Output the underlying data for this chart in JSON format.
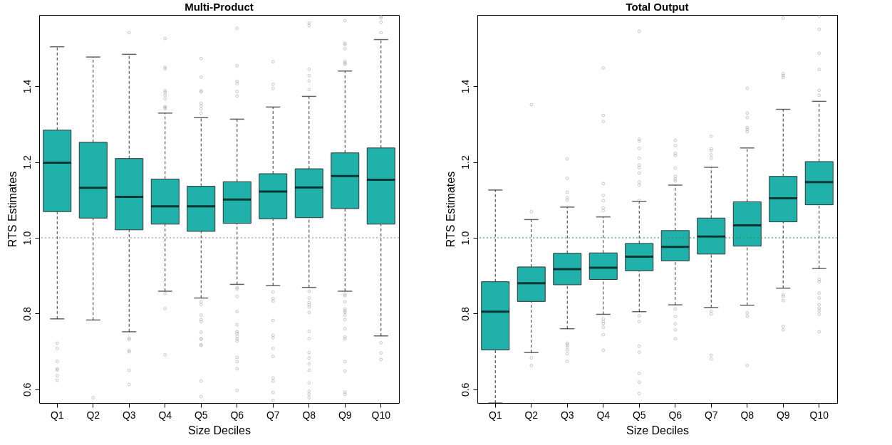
{
  "chart_data": [
    {
      "type": "box",
      "title": "Multi-Product",
      "xlabel": "Size Deciles",
      "ylabel": "RTS Estimates",
      "color": "#20b2aa",
      "ylim": [
        0.564,
        1.588
      ],
      "yticks": [
        0.6,
        0.8,
        {
          "value": 1.0,
          "label": "1.0"
        },
        1.2,
        1.4
      ],
      "categories": [
        "Q1",
        "Q2",
        "Q3",
        "Q4",
        "Q5",
        "Q6",
        "Q7",
        "Q8",
        "Q9",
        "Q10"
      ],
      "ref_lines": [
        {
          "axis": "y",
          "value": 1.0,
          "color": "#888888",
          "line_style": "dotted"
        }
      ],
      "boxes": [
        {
          "low": 0.786,
          "q1": 1.069,
          "median": 1.198,
          "q3": 1.284,
          "high": 1.504,
          "outliers": [
            0.722,
            0.708,
            0.674,
            0.654,
            0.651,
            0.636,
            0.624
          ]
        },
        {
          "low": 0.783,
          "q1": 1.052,
          "median": 1.132,
          "q3": 1.252,
          "high": 1.477,
          "outliers": [
            0.578
          ]
        },
        {
          "low": 0.752,
          "q1": 1.021,
          "median": 1.108,
          "q3": 1.209,
          "high": 1.484,
          "outliers": [
            1.541,
            0.735,
            0.732,
            0.702,
            0.699,
            0.65,
            0.613
          ]
        },
        {
          "low": 0.859,
          "q1": 1.036,
          "median": 1.083,
          "q3": 1.155,
          "high": 1.329,
          "outliers": [
            1.526,
            1.45,
            1.446,
            1.388,
            1.384,
            1.376,
            1.367,
            1.346,
            1.344,
            1.341,
            0.853,
            0.813,
            0.691
          ]
        },
        {
          "low": 0.841,
          "q1": 1.017,
          "median": 1.083,
          "q3": 1.136,
          "high": 1.317,
          "outliers": [
            1.473,
            1.424,
            1.388,
            1.385,
            1.355,
            1.348,
            1.34,
            1.329,
            0.831,
            0.824,
            0.796,
            0.784,
            0.779,
            0.751,
            0.734,
            0.732,
            0.718,
            0.716,
            0.622,
            0.581
          ]
        },
        {
          "low": 0.877,
          "q1": 1.038,
          "median": 1.101,
          "q3": 1.148,
          "high": 1.313,
          "outliers": [
            1.553,
            1.454,
            1.413,
            1.407,
            1.386,
            1.374,
            0.868,
            0.865,
            0.845,
            0.805,
            0.771,
            0.752,
            0.748,
            0.74,
            0.733,
            0.728,
            0.684,
            0.673,
            0.654,
            0.597
          ]
        },
        {
          "low": 0.874,
          "q1": 1.05,
          "median": 1.122,
          "q3": 1.169,
          "high": 1.345,
          "outliers": [
            1.465,
            1.405,
            1.394,
            0.857,
            0.84,
            0.833,
            0.782,
            0.743,
            0.736,
            0.708,
            0.687,
            0.63,
            0.622,
            0.592,
            0.571
          ]
        },
        {
          "low": 0.869,
          "q1": 1.053,
          "median": 1.133,
          "q3": 1.182,
          "high": 1.373,
          "outliers": [
            1.567,
            1.56,
            1.445,
            1.428,
            1.414,
            1.391,
            0.859,
            0.841,
            0.829,
            0.823,
            0.817,
            0.803,
            0.753,
            0.734,
            0.697,
            0.682,
            0.667,
            0.65,
            0.617,
            0.595,
            0.587,
            0.578
          ]
        },
        {
          "low": 0.859,
          "q1": 1.077,
          "median": 1.163,
          "q3": 1.224,
          "high": 1.44,
          "outliers": [
            1.573,
            1.513,
            1.51,
            1.499,
            1.465,
            1.461,
            1.458,
            0.851,
            0.847,
            0.831,
            0.812,
            0.807,
            0.803,
            0.796,
            0.784,
            0.76,
            0.738,
            0.733,
            0.673,
            0.648,
            0.593,
            0.587
          ]
        },
        {
          "low": 0.741,
          "q1": 1.036,
          "median": 1.153,
          "q3": 1.237,
          "high": 1.523,
          "outliers": [
            1.584,
            1.58,
            1.569,
            1.541,
            0.723,
            0.696,
            0.679
          ]
        }
      ]
    },
    {
      "type": "box",
      "title": "Total Output",
      "xlabel": "Size Deciles",
      "ylabel": "RTS Estimates",
      "color": "#20b2aa",
      "ylim": [
        0.564,
        1.588
      ],
      "yticks": [
        0.6,
        0.8,
        {
          "value": 1.0,
          "label": "1.0"
        },
        1.2,
        1.4
      ],
      "categories": [
        "Q1",
        "Q2",
        "Q3",
        "Q4",
        "Q5",
        "Q6",
        "Q7",
        "Q8",
        "Q9",
        "Q10"
      ],
      "ref_lines": [
        {
          "axis": "y",
          "value": 1.0,
          "color": "#2e8b57",
          "line_style": "dotted"
        }
      ],
      "boxes": [
        {
          "low": 0.564,
          "q1": 0.704,
          "median": 0.805,
          "q3": 0.884,
          "high": 1.126
        },
        {
          "low": 0.697,
          "q1": 0.832,
          "median": 0.88,
          "q3": 0.923,
          "high": 1.048,
          "outliers": [
            1.351,
            1.069,
            0.683,
            0.663
          ]
        },
        {
          "low": 0.76,
          "q1": 0.876,
          "median": 0.917,
          "q3": 0.959,
          "high": 1.081,
          "outliers": [
            1.208,
            1.157,
            1.12,
            1.106,
            1.099,
            0.722,
            0.718,
            0.712,
            0.704,
            0.694,
            0.674
          ]
        },
        {
          "low": 0.798,
          "q1": 0.89,
          "median": 0.921,
          "q3": 0.96,
          "high": 1.055,
          "outliers": [
            1.448,
            1.323,
            1.307,
            1.143,
            1.112,
            1.098,
            1.079,
            1.072,
            0.786,
            0.779,
            0.774,
            0.764,
            0.744,
            0.703
          ]
        },
        {
          "low": 0.805,
          "q1": 0.913,
          "median": 0.95,
          "q3": 0.985,
          "high": 1.096,
          "outliers": [
            1.545,
            1.26,
            1.255,
            1.236,
            1.21,
            1.192,
            1.185,
            1.171,
            1.147,
            1.139,
            1.098,
            0.794,
            0.779,
            0.714,
            0.698,
            0.642,
            0.619,
            0.589
          ]
        },
        {
          "low": 0.823,
          "q1": 0.939,
          "median": 0.976,
          "q3": 1.019,
          "high": 1.139,
          "outliers": [
            1.257,
            1.243,
            1.223,
            1.217,
            1.184,
            1.162,
            1.155,
            1.15,
            0.812,
            0.792,
            0.773,
            0.757,
            0.734
          ]
        },
        {
          "low": 0.816,
          "q1": 0.957,
          "median": 1.003,
          "q3": 1.052,
          "high": 1.186,
          "outliers": [
            1.268,
            1.235,
            1.23,
            1.219,
            1.21,
            0.806,
            0.799,
            0.69,
            0.68
          ]
        },
        {
          "low": 0.822,
          "q1": 0.978,
          "median": 1.033,
          "q3": 1.095,
          "high": 1.237,
          "outliers": [
            1.395,
            1.329,
            1.317,
            1.291,
            1.286,
            1.28,
            0.802,
            0.793,
            0.663
          ]
        },
        {
          "low": 0.867,
          "q1": 1.042,
          "median": 1.104,
          "q3": 1.162,
          "high": 1.339,
          "outliers": [
            1.58,
            1.433,
            1.428,
            1.423,
            0.849,
            0.845,
            0.834,
            0.766,
            0.757
          ]
        },
        {
          "low": 0.919,
          "q1": 1.087,
          "median": 1.147,
          "q3": 1.201,
          "high": 1.36,
          "outliers": [
            1.585,
            1.55,
            1.487,
            1.444,
            1.389,
            1.376,
            0.89,
            0.884,
            0.854,
            0.841,
            0.823,
            0.814,
            0.807,
            0.798,
            0.752
          ]
        }
      ]
    }
  ]
}
